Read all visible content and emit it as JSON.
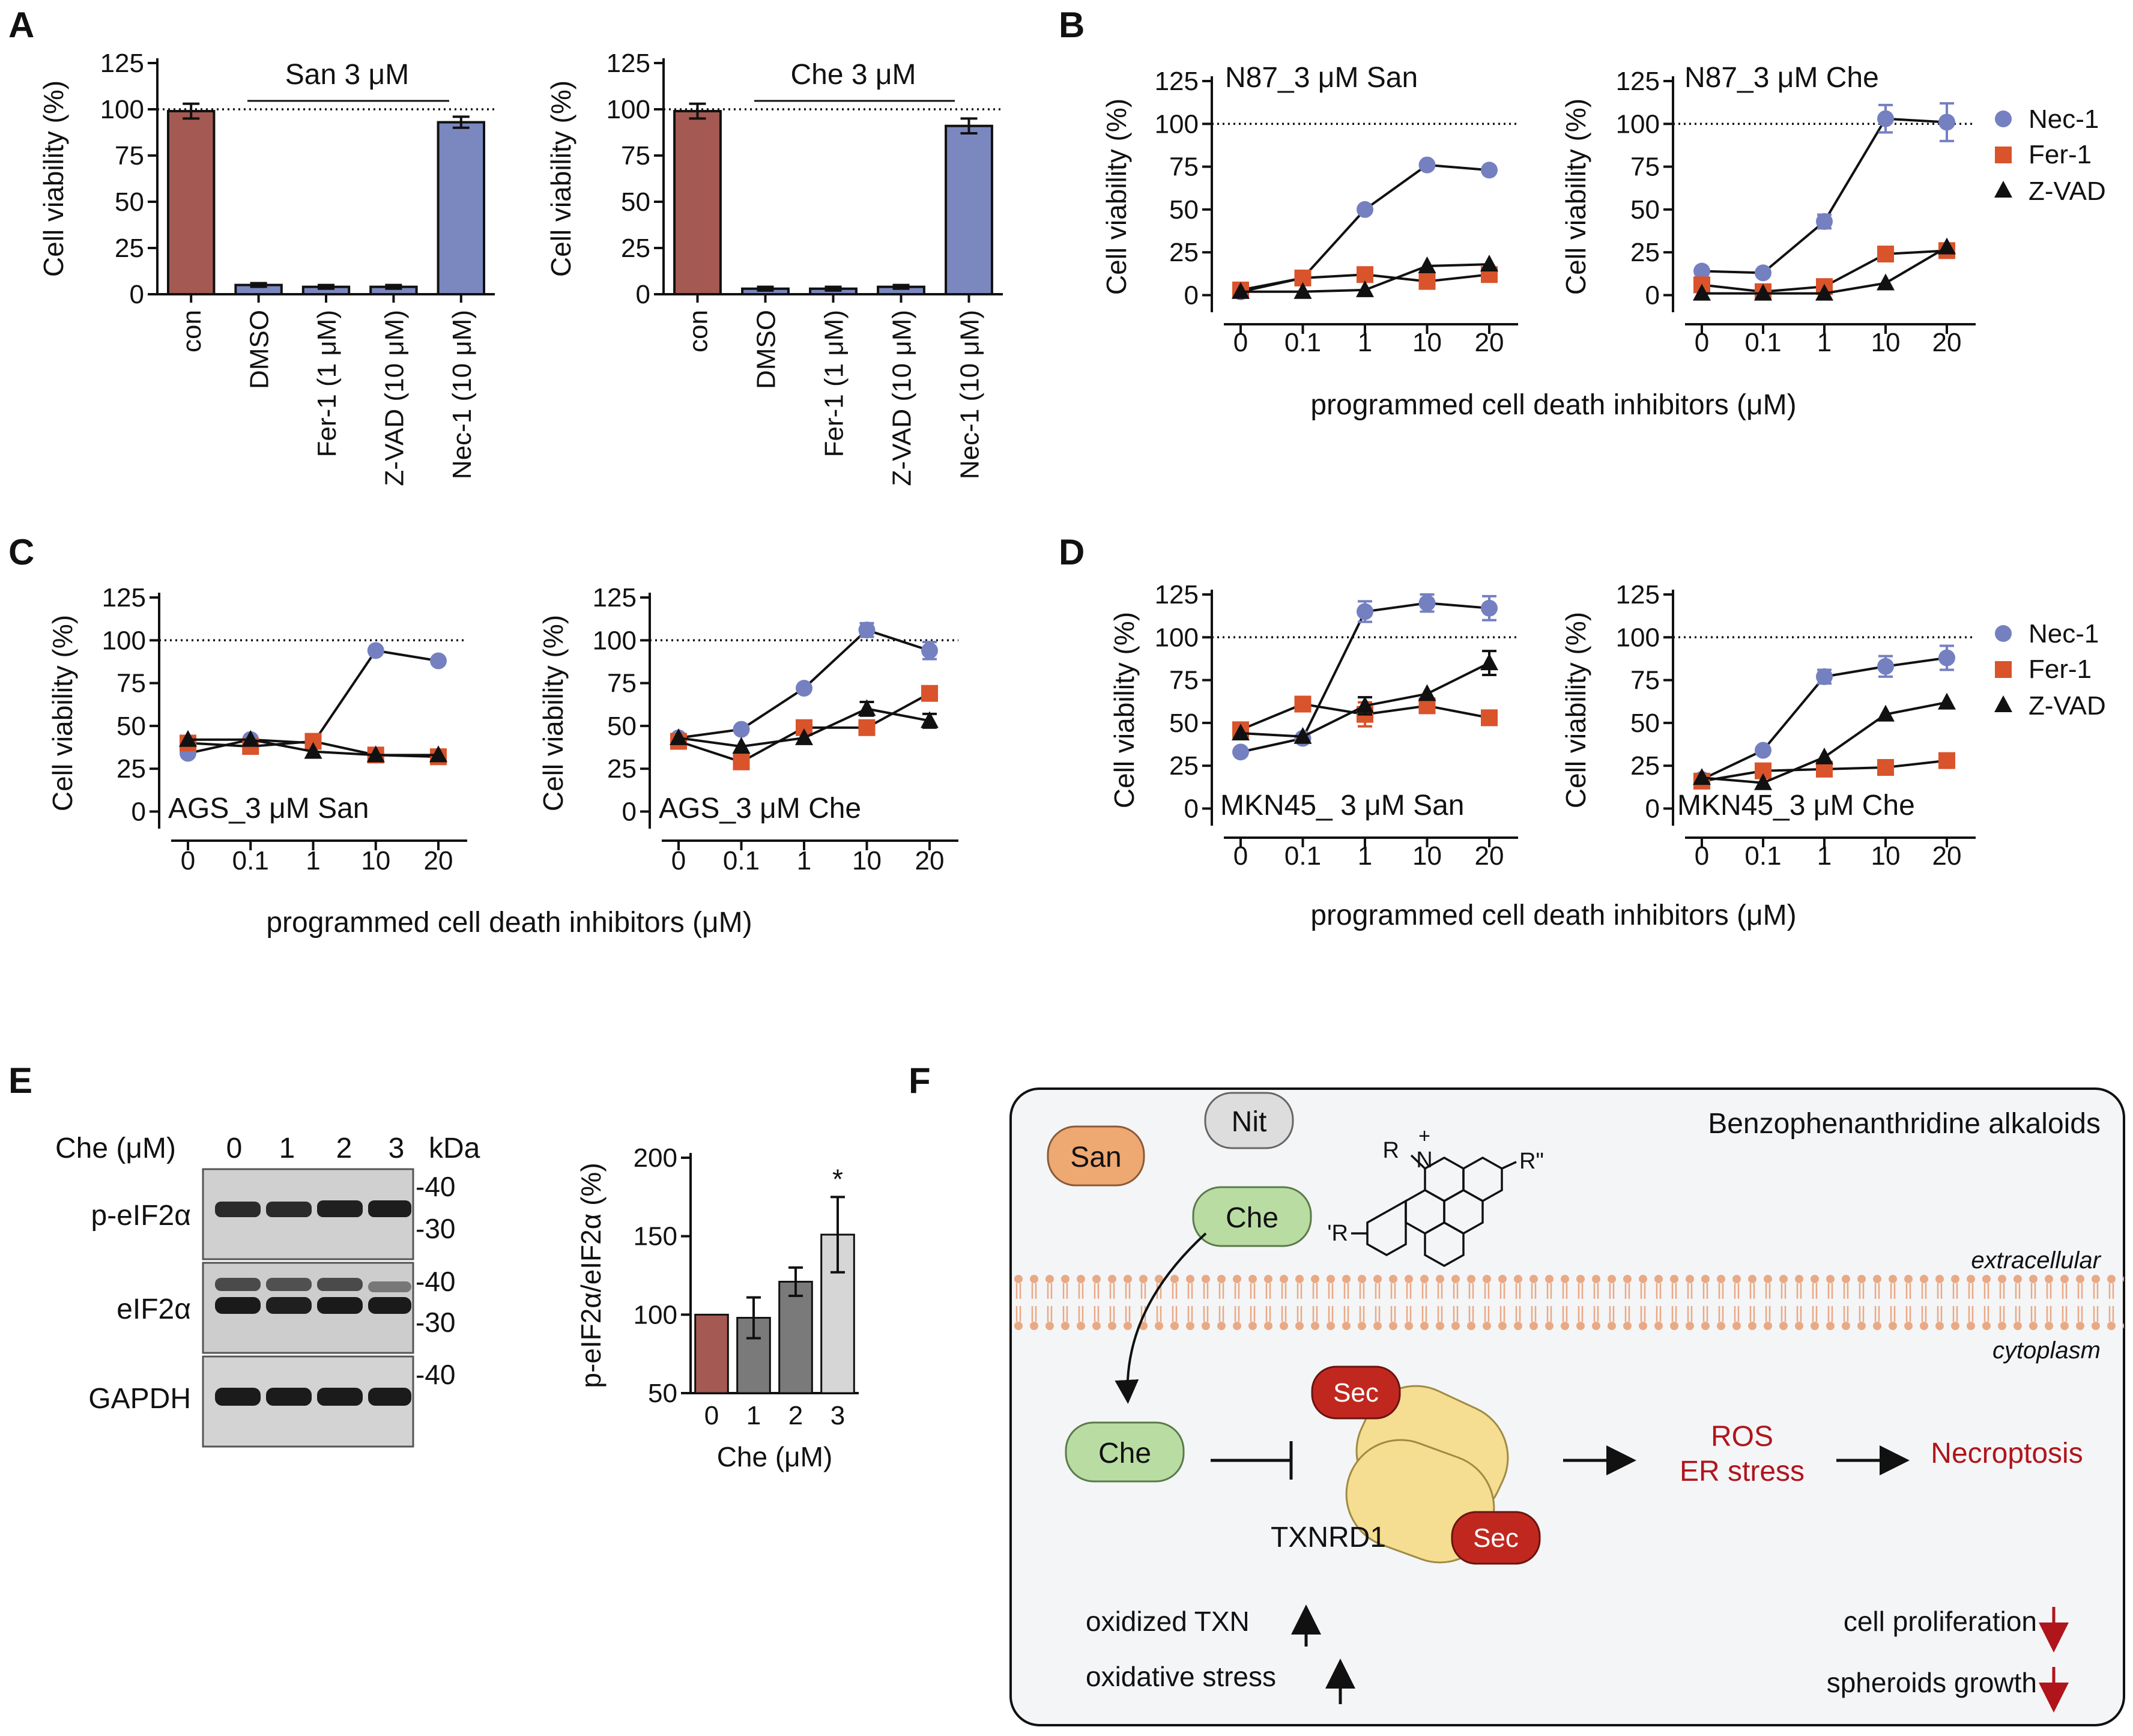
{
  "panel_letters": {
    "A": "A",
    "B": "B",
    "C": "C",
    "D": "D",
    "E": "E",
    "F": "F"
  },
  "colors": {
    "con": "#a45a52",
    "treat": "#7b88bf",
    "nec": "#7480c0",
    "fer": "#d9532b",
    "zvad": "#111111",
    "e_bars": [
      "#a45a52",
      "#7a7a7a",
      "#7a7a7a",
      "#d6d6d6"
    ],
    "red_text": "#b0151c",
    "sec": "#c0281f",
    "txnrd": "#f5dd92",
    "san": "#eea872",
    "nit": "#dddddd",
    "che": "#b9dca3",
    "membrane": "#e9a985",
    "panel_f_bg": "#f4f5f7"
  },
  "legend": [
    "Nec-1",
    "Fer-1",
    "Z-VAD"
  ],
  "shared_xlabel": "programmed cell death inhibitors (μM)",
  "chart_data": [
    {
      "id": "A1",
      "type": "bar",
      "title": "San 3 μM",
      "ylabel": "Cell viability (%)",
      "categories": [
        "con",
        "DMSO",
        "Fer-1 (1 μM)",
        "Z-VAD (10 μM)",
        "Nec-1 (10 μM)"
      ],
      "values": [
        99,
        5,
        4,
        4,
        93
      ],
      "errors": [
        4,
        1,
        1,
        1,
        3
      ],
      "ylim": [
        0,
        125
      ],
      "yticks": [
        0,
        25,
        50,
        75,
        100,
        125
      ],
      "refline": 100
    },
    {
      "id": "A2",
      "type": "bar",
      "title": "Che 3 μM",
      "ylabel": "Cell viability (%)",
      "categories": [
        "con",
        "DMSO",
        "Fer-1 (1 μM)",
        "Z-VAD (10 μM)",
        "Nec-1 (10 μM)"
      ],
      "values": [
        99,
        3,
        3,
        4,
        91
      ],
      "errors": [
        4,
        1,
        1,
        1,
        4
      ],
      "ylim": [
        0,
        125
      ],
      "yticks": [
        0,
        25,
        50,
        75,
        100,
        125
      ],
      "refline": 100
    },
    {
      "id": "B1",
      "type": "line",
      "title": "N87_3 μM San",
      "ylabel": "Cell viability (%)",
      "x": [
        "0",
        "0.1",
        "1",
        "10",
        "20"
      ],
      "series": [
        {
          "name": "Nec-1",
          "values": [
            2,
            10,
            50,
            76,
            73
          ],
          "errors": [
            1,
            1,
            2,
            2,
            3
          ]
        },
        {
          "name": "Fer-1",
          "values": [
            3,
            10,
            12,
            8,
            12
          ],
          "errors": [
            1,
            1,
            1,
            1,
            1
          ]
        },
        {
          "name": "Z-VAD",
          "values": [
            2,
            2,
            3,
            17,
            18
          ],
          "errors": [
            1,
            1,
            1,
            2,
            2
          ]
        }
      ],
      "ylim": [
        -10,
        125
      ],
      "yticks": [
        0,
        25,
        50,
        75,
        100,
        125
      ],
      "refline": 100
    },
    {
      "id": "B2",
      "type": "line",
      "title": "N87_3 μM Che",
      "ylabel": "Cell viability (%)",
      "x": [
        "0",
        "0.1",
        "1",
        "10",
        "20"
      ],
      "series": [
        {
          "name": "Nec-1",
          "values": [
            14,
            13,
            43,
            103,
            101
          ],
          "errors": [
            1,
            1,
            4,
            8,
            11
          ]
        },
        {
          "name": "Fer-1",
          "values": [
            6,
            2,
            5,
            24,
            26
          ],
          "errors": [
            1,
            1,
            1,
            2,
            2
          ]
        },
        {
          "name": "Z-VAD",
          "values": [
            1,
            1,
            1,
            7,
            28
          ],
          "errors": [
            1,
            1,
            1,
            1,
            2
          ]
        }
      ],
      "ylim": [
        -10,
        125
      ],
      "yticks": [
        0,
        25,
        50,
        75,
        100,
        125
      ],
      "refline": 100
    },
    {
      "id": "C1",
      "type": "line",
      "title": "AGS_3 μM San",
      "ylabel": "Cell viability (%)",
      "x": [
        "0",
        "0.1",
        "1",
        "10",
        "20"
      ],
      "series": [
        {
          "name": "Nec-1",
          "values": [
            34,
            42,
            40,
            94,
            88
          ],
          "errors": [
            2,
            2,
            2,
            2,
            3
          ]
        },
        {
          "name": "Fer-1",
          "values": [
            40,
            38,
            41,
            33,
            32
          ],
          "errors": [
            2,
            2,
            2,
            2,
            2
          ]
        },
        {
          "name": "Z-VAD",
          "values": [
            42,
            42,
            35,
            33,
            33
          ],
          "errors": [
            2,
            2,
            2,
            2,
            2
          ]
        }
      ],
      "ylim": [
        -10,
        125
      ],
      "yticks": [
        0,
        25,
        50,
        75,
        100,
        125
      ],
      "refline": 100
    },
    {
      "id": "C2",
      "type": "line",
      "title": "AGS_3 μM Che",
      "ylabel": "Cell viability (%)",
      "x": [
        "0",
        "0.1",
        "1",
        "10",
        "20"
      ],
      "series": [
        {
          "name": "Nec-1",
          "values": [
            43,
            48,
            72,
            106,
            94
          ],
          "errors": [
            2,
            2,
            2,
            4,
            5
          ]
        },
        {
          "name": "Fer-1",
          "values": [
            41,
            29,
            49,
            49,
            69
          ],
          "errors": [
            2,
            3,
            3,
            3,
            3
          ]
        },
        {
          "name": "Z-VAD",
          "values": [
            43,
            38,
            43,
            60,
            53
          ],
          "errors": [
            3,
            2,
            3,
            4,
            4
          ]
        }
      ],
      "ylim": [
        -10,
        125
      ],
      "yticks": [
        0,
        25,
        50,
        75,
        100,
        125
      ],
      "refline": 100
    },
    {
      "id": "D1",
      "type": "line",
      "title": "MKN45_ 3 μM San",
      "ylabel": "Cell viability (%)",
      "x": [
        "0",
        "0.1",
        "1",
        "10",
        "20"
      ],
      "series": [
        {
          "name": "Nec-1",
          "values": [
            33,
            41,
            115,
            120,
            117
          ],
          "errors": [
            2,
            2,
            6,
            5,
            7
          ]
        },
        {
          "name": "Fer-1",
          "values": [
            46,
            61,
            55,
            60,
            53
          ],
          "errors": [
            3,
            2,
            7,
            4,
            3
          ]
        },
        {
          "name": "Z-VAD",
          "values": [
            44,
            42,
            60,
            67,
            85
          ],
          "errors": [
            3,
            2,
            5,
            3,
            7
          ]
        }
      ],
      "ylim": [
        -10,
        125
      ],
      "yticks": [
        0,
        25,
        50,
        75,
        100,
        125
      ],
      "refline": 100
    },
    {
      "id": "D2",
      "type": "line",
      "title": "MKN45_3 μM Che",
      "ylabel": "Cell viability (%)",
      "x": [
        "0",
        "0.1",
        "1",
        "10",
        "20"
      ],
      "series": [
        {
          "name": "Nec-1",
          "values": [
            17,
            34,
            77,
            83,
            88
          ],
          "errors": [
            2,
            2,
            4,
            6,
            7
          ]
        },
        {
          "name": "Fer-1",
          "values": [
            16,
            22,
            23,
            24,
            28
          ],
          "errors": [
            2,
            3,
            2,
            2,
            2
          ]
        },
        {
          "name": "Z-VAD",
          "values": [
            18,
            15,
            30,
            55,
            62
          ],
          "errors": [
            2,
            2,
            2,
            3,
            3
          ]
        }
      ],
      "ylim": [
        -10,
        125
      ],
      "yticks": [
        0,
        25,
        50,
        75,
        100,
        125
      ],
      "refline": 100
    },
    {
      "id": "E",
      "type": "bar",
      "title": "",
      "xlabel": "Che (μM)",
      "ylabel": "p-eIF2α/eIF2α (%)",
      "categories": [
        "0",
        "1",
        "2",
        "3"
      ],
      "values": [
        100,
        98,
        121,
        151
      ],
      "errors": [
        0,
        13,
        9,
        24
      ],
      "annotations": [
        "",
        "",
        "",
        "*"
      ],
      "ylim": [
        50,
        200
      ],
      "yticks": [
        50,
        100,
        150,
        200
      ]
    }
  ],
  "blot": {
    "header": "Che (μM)",
    "lanes": [
      "0",
      "1",
      "2",
      "3"
    ],
    "unit": "kDa",
    "rows": [
      {
        "label": "p-eIF2α",
        "markers": [
          "-40",
          "-30"
        ]
      },
      {
        "label": "eIF2α",
        "markers": [
          "-40",
          "-30"
        ]
      },
      {
        "label": "GAPDH",
        "markers": [
          "-40"
        ]
      }
    ]
  },
  "scheme": {
    "title": "Benzophenanthridine alkaloids",
    "san": "San",
    "nit": "Nit",
    "che_top": "Che",
    "che_bottom": "Che",
    "struct_r": "R",
    "struct_plus": "+",
    "struct_n": "N",
    "struct_r2": "R\"",
    "struct_r3": "'R",
    "extracellular": "extracellular",
    "cytoplasm": "cytoplasm",
    "sec": "Sec",
    "txnrd1": "TXNRD1",
    "ros": "ROS",
    "er_stress": "ER stress",
    "necroptosis": "Necroptosis",
    "oxidized_txn": "oxidized TXN",
    "oxidative_stress": "oxidative stress",
    "cell_prolif": "cell proliferation",
    "spheroids": "spheroids growth"
  }
}
